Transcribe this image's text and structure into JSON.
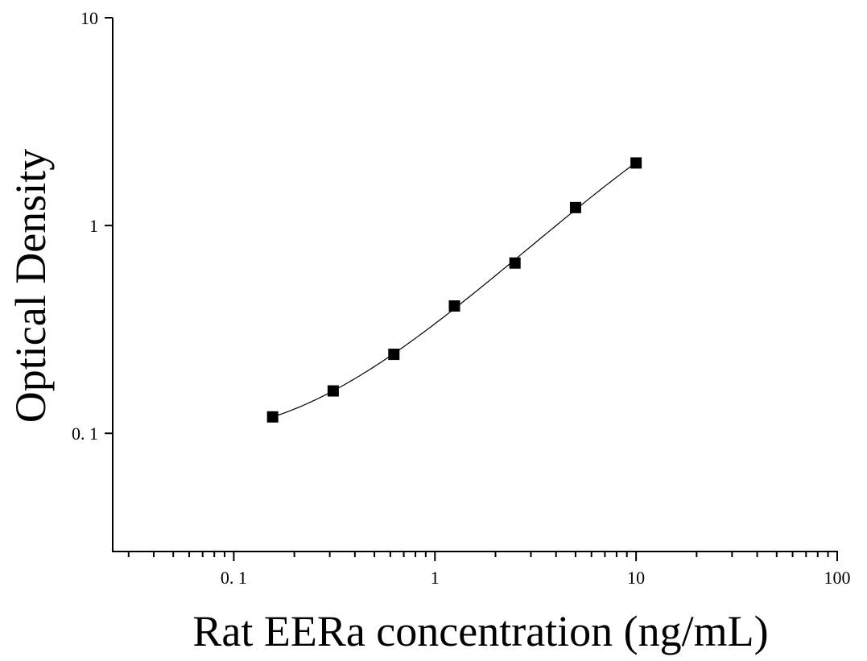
{
  "chart_data": {
    "type": "scatter",
    "xlabel": "Rat EERa concentration (ng/mL)",
    "ylabel": "Optical Density",
    "xscale": "log",
    "yscale": "log",
    "xlim": [
      0.025,
      100
    ],
    "ylim": [
      0.027,
      10
    ],
    "x_ticks": [
      {
        "value": 0.1,
        "label": "0. 1"
      },
      {
        "value": 1,
        "label": "1"
      },
      {
        "value": 10,
        "label": "10"
      },
      {
        "value": 100,
        "label": "100"
      }
    ],
    "y_ticks": [
      {
        "value": 0.1,
        "label": "0. 1"
      },
      {
        "value": 1,
        "label": "1"
      },
      {
        "value": 10,
        "label": "10"
      }
    ],
    "grid": false,
    "marker": "square",
    "series": [
      {
        "x": [
          0.156,
          0.312,
          0.625,
          1.25,
          2.5,
          5,
          10
        ],
        "y": [
          0.12,
          0.16,
          0.24,
          0.41,
          0.66,
          1.22,
          2.0
        ]
      }
    ],
    "fit_curve": true,
    "colors": {
      "marker": "#000000",
      "line": "#000000",
      "axis": "#000000"
    }
  }
}
